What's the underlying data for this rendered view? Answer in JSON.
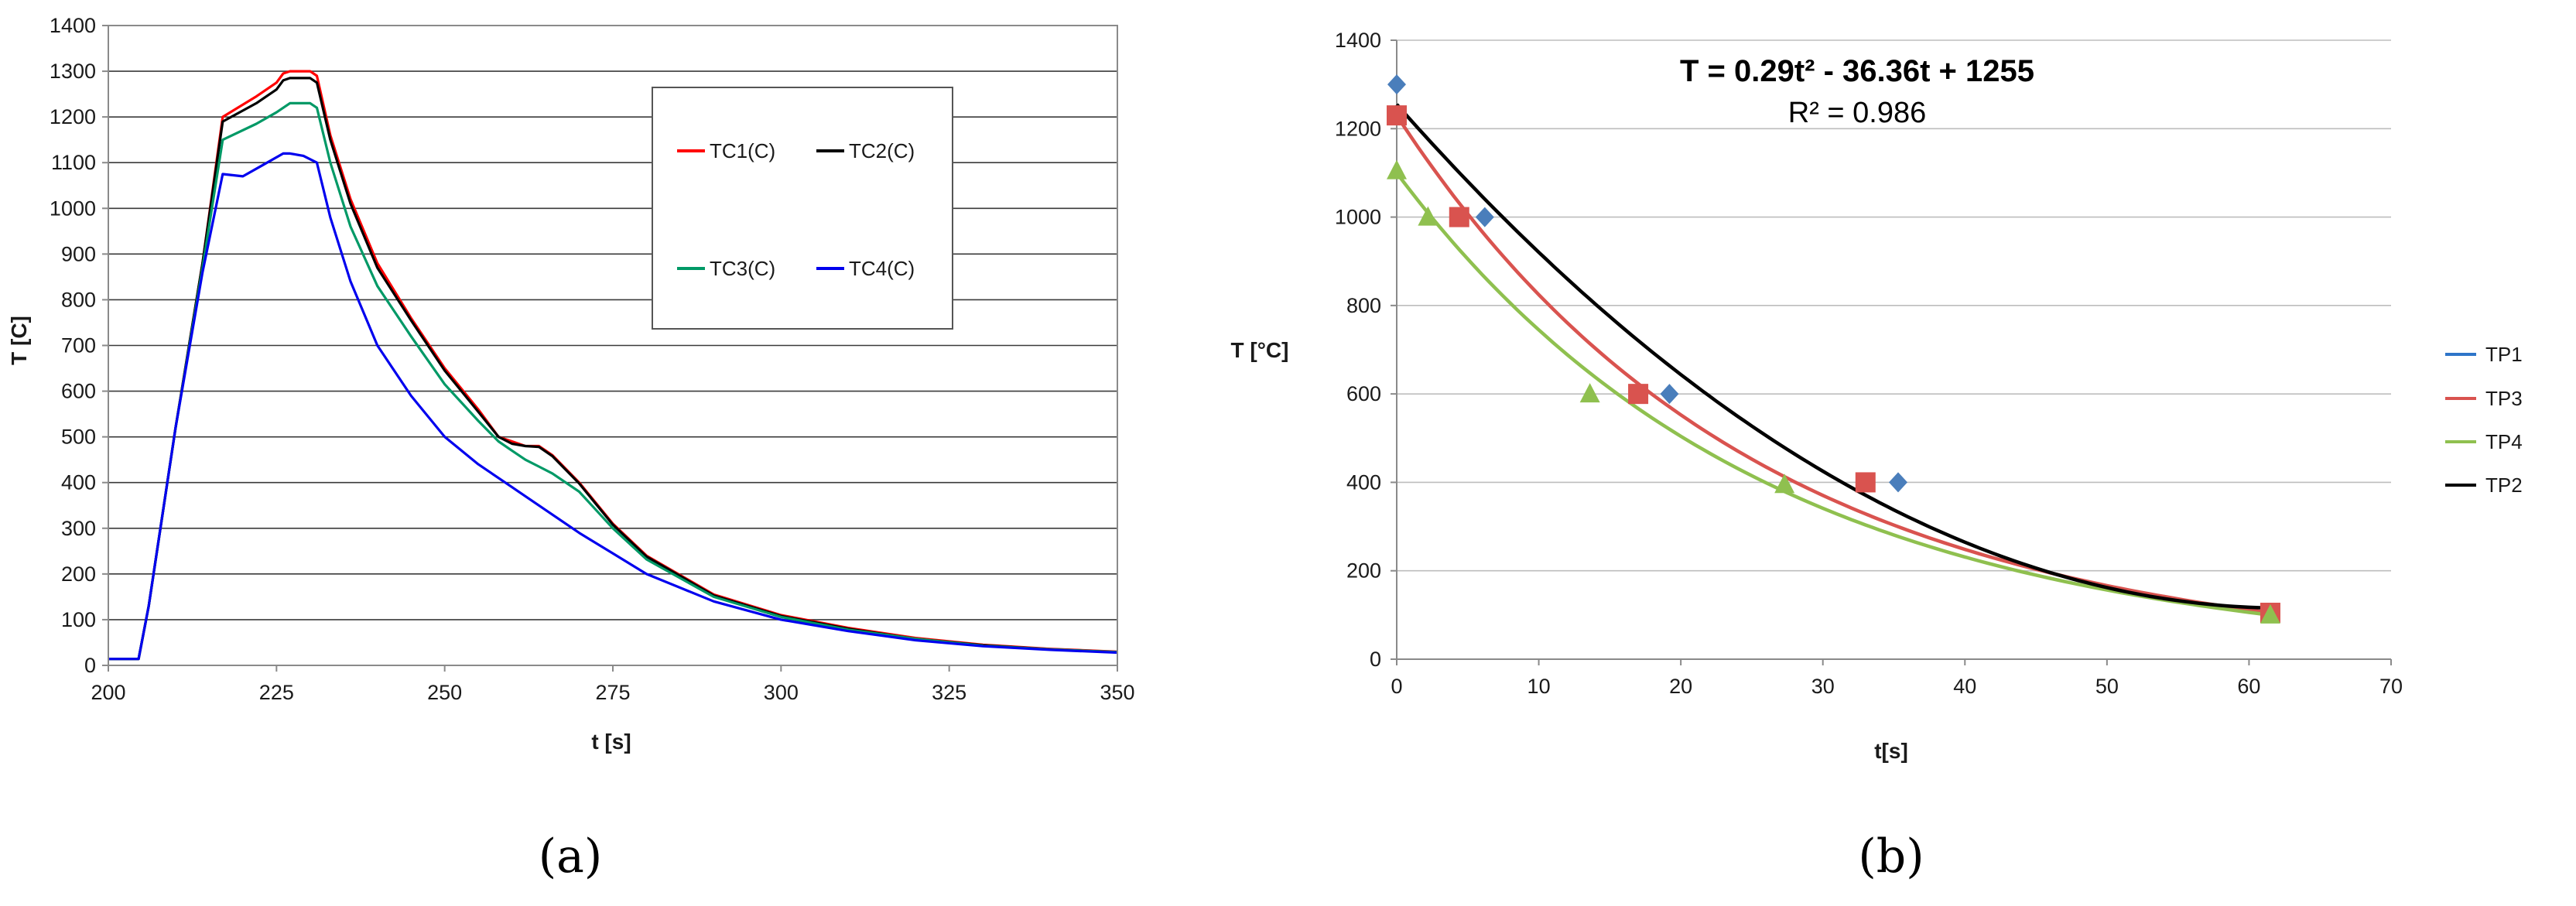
{
  "chart_data": [
    {
      "type": "line",
      "caption": "(a)",
      "xlabel": "t [s]",
      "ylabel": "T [C]",
      "xlim": [
        200,
        350
      ],
      "ylim": [
        0,
        1400
      ],
      "xticks": [
        200,
        225,
        250,
        275,
        300,
        325,
        350
      ],
      "yticks": [
        0,
        100,
        200,
        300,
        400,
        500,
        600,
        700,
        800,
        900,
        1000,
        1100,
        1200,
        1300,
        1400
      ],
      "grid": true,
      "legend_position": "top-right",
      "series": [
        {
          "name": "TC1(C)",
          "color": "#ff0000",
          "x": [
            200,
            204.5,
            206,
            210,
            214,
            217,
            222,
            225,
            226,
            227,
            230,
            231,
            233,
            236,
            240,
            245,
            250,
            255,
            258,
            260,
            262,
            264,
            266,
            270,
            275,
            280,
            290,
            300,
            310,
            320,
            330,
            340,
            350
          ],
          "y": [
            14,
            14,
            130,
            520,
            880,
            1200,
            1245,
            1275,
            1295,
            1300,
            1300,
            1290,
            1160,
            1020,
            880,
            760,
            650,
            560,
            500,
            490,
            480,
            480,
            460,
            400,
            310,
            240,
            155,
            110,
            82,
            60,
            45,
            36,
            30
          ]
        },
        {
          "name": "TC2(C)",
          "color": "#000000",
          "x": [
            200,
            204.5,
            206,
            210,
            214,
            217,
            222,
            225,
            226,
            227,
            230,
            231,
            233,
            236,
            240,
            245,
            250,
            255,
            258,
            260,
            262,
            264,
            266,
            270,
            275,
            280,
            290,
            300,
            310,
            320,
            330,
            340,
            350
          ],
          "y": [
            14,
            14,
            130,
            520,
            880,
            1190,
            1230,
            1260,
            1280,
            1285,
            1285,
            1275,
            1150,
            1010,
            870,
            755,
            645,
            555,
            500,
            485,
            480,
            478,
            458,
            398,
            308,
            238,
            153,
            108,
            80,
            58,
            44,
            35,
            29
          ]
        },
        {
          "name": "TC3(C)",
          "color": "#009966",
          "x": [
            200,
            204.5,
            206,
            210,
            214,
            217,
            222,
            225,
            227,
            230,
            231,
            233,
            236,
            240,
            245,
            250,
            255,
            258,
            260,
            262,
            264,
            266,
            270,
            275,
            280,
            290,
            300,
            310,
            320,
            330,
            340,
            350
          ],
          "y": [
            14,
            14,
            130,
            520,
            870,
            1150,
            1185,
            1210,
            1230,
            1230,
            1220,
            1100,
            960,
            830,
            720,
            615,
            535,
            490,
            470,
            450,
            435,
            420,
            380,
            300,
            232,
            150,
            106,
            78,
            58,
            43,
            35,
            29
          ]
        },
        {
          "name": "TC4(C)",
          "color": "#0000ee",
          "x": [
            200,
            204.5,
            206,
            210,
            214,
            217,
            220,
            223,
            226,
            227,
            229,
            231,
            233,
            236,
            240,
            245,
            250,
            255,
            260,
            265,
            270,
            275,
            280,
            290,
            300,
            310,
            320,
            330,
            340,
            350
          ],
          "y": [
            14,
            14,
            130,
            520,
            860,
            1075,
            1070,
            1095,
            1120,
            1120,
            1115,
            1100,
            980,
            840,
            700,
            590,
            500,
            440,
            390,
            340,
            290,
            245,
            200,
            140,
            100,
            75,
            55,
            42,
            34,
            28
          ]
        }
      ],
      "legend": [
        "TC1(C)",
        "TC2(C)",
        "TC3(C)",
        "TC4(C)"
      ]
    },
    {
      "type": "scatter",
      "caption": "(b)",
      "xlabel": "t[s]",
      "ylabel": "T [°C]",
      "xlim": [
        0,
        70
      ],
      "ylim": [
        0,
        1400
      ],
      "xticks": [
        0,
        10,
        20,
        30,
        40,
        50,
        60,
        70
      ],
      "yticks": [
        0,
        200,
        400,
        600,
        800,
        1000,
        1200,
        1400
      ],
      "grid": true,
      "legend_position": "right",
      "annotation_equation": "T = 0.29t² - 36.36t + 1255",
      "annotation_r2": "R² = 0.986",
      "series": [
        {
          "name": "TP1",
          "color": "#4a7ebb",
          "marker": "diamond",
          "x": [
            0,
            6.2,
            19.2,
            35.3,
            61.5
          ],
          "y": [
            1300,
            1000,
            600,
            400,
            105
          ],
          "trend": null
        },
        {
          "name": "TP3",
          "color": "#d9534f",
          "marker": "square",
          "x": [
            0,
            4.4,
            17,
            33,
            61.5
          ],
          "y": [
            1230,
            1000,
            600,
            400,
            105
          ],
          "trend": {
            "kind": "exponential",
            "a": 1230,
            "b": 0.04
          }
        },
        {
          "name": "TP4",
          "color": "#8fc04f",
          "marker": "triangle",
          "x": [
            0,
            2.2,
            13.6,
            27.3,
            61.5
          ],
          "y": [
            1105,
            1000,
            600,
            395,
            100
          ],
          "trend": {
            "kind": "exponential",
            "a": 1100,
            "b": 0.039
          }
        },
        {
          "name": "TP2",
          "color": "#000000",
          "marker": "none",
          "x": [],
          "y": [],
          "trend": {
            "kind": "poly2",
            "a": 0.29,
            "b": -36.36,
            "c": 1255
          }
        }
      ],
      "legend": [
        "TP1",
        "TP3",
        "TP4",
        "TP2"
      ]
    }
  ]
}
